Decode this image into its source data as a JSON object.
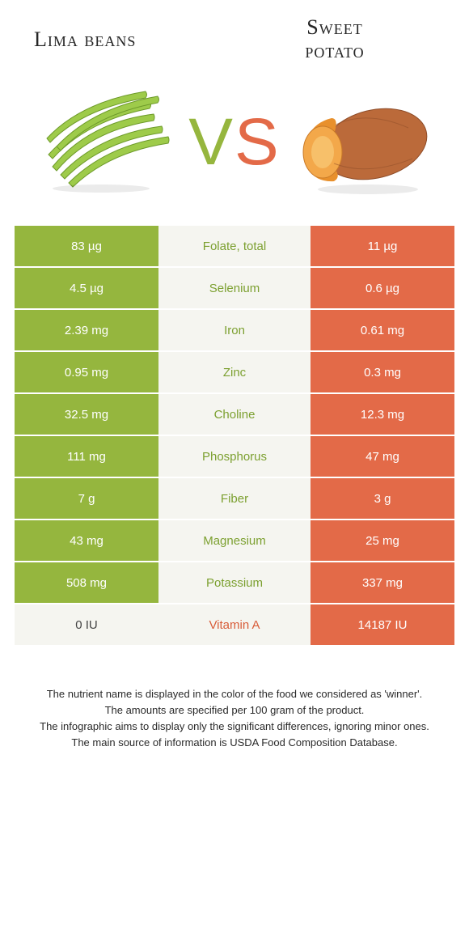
{
  "header": {
    "left_title": "Lima beans",
    "right_title_line1": "Sweet",
    "right_title_line2": "potato"
  },
  "vs": {
    "v": "V",
    "s": "S"
  },
  "colors": {
    "green": "#95b63e",
    "orange": "#e36a48",
    "mid_bg": "#f5f5f0",
    "text_green": "#7ca030",
    "text_orange": "#d85d3a"
  },
  "rows": [
    {
      "name": "Folate, total",
      "left": "83 µg",
      "right": "11 µg",
      "winner": "left"
    },
    {
      "name": "Selenium",
      "left": "4.5 µg",
      "right": "0.6 µg",
      "winner": "left"
    },
    {
      "name": "Iron",
      "left": "2.39 mg",
      "right": "0.61 mg",
      "winner": "left"
    },
    {
      "name": "Zinc",
      "left": "0.95 mg",
      "right": "0.3 mg",
      "winner": "left"
    },
    {
      "name": "Choline",
      "left": "32.5 mg",
      "right": "12.3 mg",
      "winner": "left"
    },
    {
      "name": "Phosphorus",
      "left": "111 mg",
      "right": "47 mg",
      "winner": "left"
    },
    {
      "name": "Fiber",
      "left": "7 g",
      "right": "3 g",
      "winner": "left"
    },
    {
      "name": "Magnesium",
      "left": "43 mg",
      "right": "25 mg",
      "winner": "left"
    },
    {
      "name": "Potassium",
      "left": "508 mg",
      "right": "337 mg",
      "winner": "left"
    },
    {
      "name": "Vitamin A",
      "left": "0 IU",
      "right": "14187 IU",
      "winner": "right"
    }
  ],
  "footer": {
    "l1": "The nutrient name is displayed in the color of the food we considered as 'winner'.",
    "l2": "The amounts are specified per 100 gram of the product.",
    "l3": "The infographic aims to display only the significant differences, ignoring minor ones.",
    "l4": "The main source of information is USDA Food Composition Database."
  }
}
